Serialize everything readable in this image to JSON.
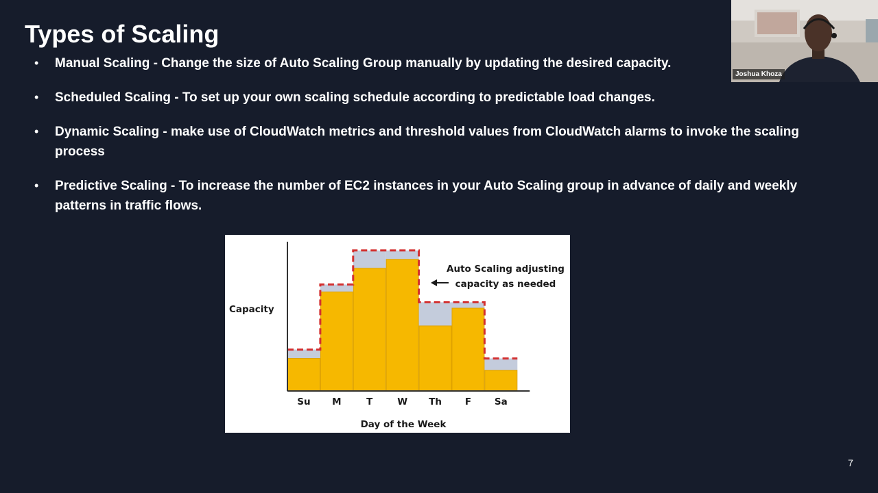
{
  "slide": {
    "title": "Types of Scaling",
    "number": "7",
    "bullets": [
      {
        "text": "Manual Scaling -  Change the size of Auto Scaling Group manually by updating the desired capacity."
      },
      {
        "text": "Scheduled Scaling - To set up your own scaling schedule according to predictable load changes."
      },
      {
        "text": "Dynamic Scaling -  make use of CloudWatch metrics and threshold values from CloudWatch alarms to invoke the scaling process"
      },
      {
        "text": "Predictive Scaling - To increase the number of EC2 instances in your Auto Scaling group in advance of daily and weekly patterns in traffic flows."
      }
    ]
  },
  "webcam": {
    "name": "Joshua Khoza"
  },
  "chart_data": {
    "type": "bar",
    "categories": [
      "Su",
      "M",
      "T",
      "W",
      "Th",
      "F",
      "Sa"
    ],
    "series": [
      {
        "values": [
          0.22,
          0.67,
          0.83,
          0.89,
          0.44,
          0.56,
          0.14
        ]
      },
      {
        "values": [
          0.28,
          0.72,
          0.95,
          0.95,
          0.6,
          0.6,
          0.22
        ]
      }
    ],
    "xlabel": "Day of the Week",
    "ylabel": "Capacity",
    "annotation": [
      "Auto Scaling adjusting",
      "capacity as needed"
    ],
    "ylim": [
      0,
      1
    ],
    "grid": false,
    "colors": {
      "bar": "#f6b800",
      "bar_edge": "#e0a300",
      "capacity_fill": "#c4ccdc",
      "capacity_line": "#d32f2f",
      "axis": "#333333"
    }
  }
}
